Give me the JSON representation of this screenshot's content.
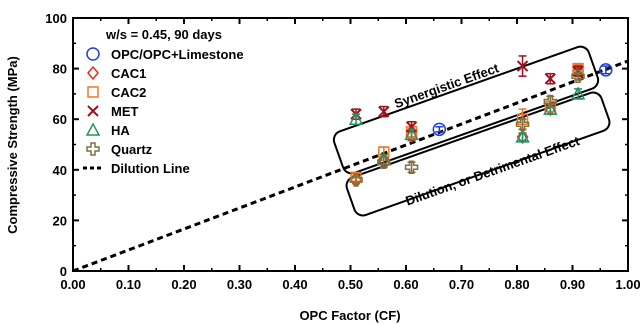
{
  "chart_data": {
    "type": "scatter",
    "xlabel": "OPC Factor (CF)",
    "ylabel": "Compressive Strength (MPa)",
    "xlim": [
      0.0,
      1.0
    ],
    "ylim": [
      0,
      100
    ],
    "xticks": [
      "0.00",
      "0.10",
      "0.20",
      "0.30",
      "0.40",
      "0.50",
      "0.60",
      "0.70",
      "0.80",
      "0.90",
      "1.00"
    ],
    "yticks": [
      "0",
      "20",
      "40",
      "60",
      "80",
      "100"
    ],
    "legend_title": "w/s = 0.45, 90 days",
    "legend_position": "top-left",
    "grid": false,
    "series": [
      {
        "name": "OPC/OPC+Limestone",
        "marker": "circle",
        "color": "#1f3fd6",
        "points": [
          [
            0.66,
            56.0
          ],
          [
            0.96,
            79.5
          ]
        ],
        "errors": [
          1.0,
          1.5
        ]
      },
      {
        "name": "CAC1",
        "marker": "diamond",
        "color": "#e03020",
        "points": [
          [
            0.51,
            36.0
          ],
          [
            0.56,
            44.0
          ],
          [
            0.61,
            53.5
          ],
          [
            0.81,
            53.0
          ],
          [
            0.86,
            64.0
          ],
          [
            0.91,
            79.0
          ]
        ],
        "errors": [
          1.5,
          2.0,
          2.0,
          1.5,
          2.0,
          1.5
        ]
      },
      {
        "name": "CAC2",
        "marker": "square",
        "color": "#f07820",
        "points": [
          [
            0.51,
            37.0
          ],
          [
            0.56,
            47.0
          ],
          [
            0.61,
            55.0
          ],
          [
            0.81,
            60.0
          ],
          [
            0.86,
            65.0
          ],
          [
            0.91,
            80.0
          ]
        ],
        "errors": [
          1.5,
          2.0,
          2.0,
          4.0,
          2.0,
          1.5
        ]
      },
      {
        "name": "MET",
        "marker": "x",
        "color": "#a01020",
        "points": [
          [
            0.51,
            62.0
          ],
          [
            0.56,
            63.0
          ],
          [
            0.61,
            57.0
          ],
          [
            0.81,
            81.0
          ],
          [
            0.86,
            76.0
          ],
          [
            0.91,
            79.0
          ]
        ],
        "errors": [
          2.0,
          2.0,
          2.0,
          4.0,
          2.0,
          2.0
        ]
      },
      {
        "name": "HA",
        "marker": "triangle",
        "color": "#2a9060",
        "points": [
          [
            0.51,
            60.0
          ],
          [
            0.56,
            44.0
          ],
          [
            0.61,
            54.0
          ],
          [
            0.81,
            53.0
          ],
          [
            0.86,
            64.0
          ],
          [
            0.91,
            70.0
          ]
        ],
        "errors": [
          2.0,
          2.0,
          2.0,
          1.5,
          2.0,
          2.0
        ]
      },
      {
        "name": "Quartz",
        "marker": "plus-circle",
        "color": "#807040",
        "points": [
          [
            0.51,
            36.0
          ],
          [
            0.56,
            43.0
          ],
          [
            0.61,
            41.0
          ],
          [
            0.81,
            58.0
          ],
          [
            0.86,
            67.0
          ],
          [
            0.91,
            77.0
          ]
        ],
        "errors": [
          1.5,
          2.0,
          2.0,
          2.0,
          2.0,
          1.5
        ]
      }
    ],
    "dilution_line": {
      "name": "Dilution Line",
      "style": "dashed",
      "from": [
        0.0,
        0.0
      ],
      "to": [
        1.0,
        83.0
      ]
    },
    "annotations": [
      {
        "text": "Synergistic Effect",
        "region": "above"
      },
      {
        "text": "Dilution, or Detrimental Effect",
        "region": "below"
      }
    ]
  }
}
